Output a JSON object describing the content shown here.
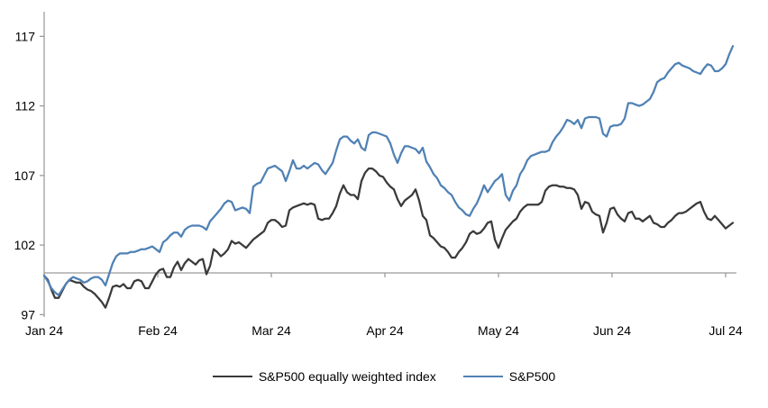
{
  "chart_data": {
    "type": "line",
    "title": "",
    "grid": "off",
    "legend_position": "bottom",
    "x_axis": {
      "tick_labels": [
        "Jan 24",
        "Feb 24",
        "Mar 24",
        "Apr 24",
        "May 24",
        "Jun 24",
        "Jul 24"
      ],
      "unit": "month"
    },
    "y_axis": {
      "ticks": [
        117,
        112,
        107,
        102,
        97
      ],
      "range": [
        97,
        117
      ],
      "baseline": 100
    },
    "axis_color": "#9a9a9a",
    "series": [
      {
        "name": "S&P500 equally weighted index",
        "color": "#3a3a3a",
        "values": [
          99.8,
          99.5,
          98.8,
          98.2,
          98.2,
          98.7,
          99.2,
          99.5,
          99.4,
          99.3,
          99.3,
          99.0,
          98.8,
          98.7,
          98.5,
          98.2,
          97.9,
          97.5,
          98.2,
          99.0,
          99.1,
          99.0,
          99.2,
          98.9,
          98.9,
          99.4,
          99.5,
          99.4,
          98.9,
          98.9,
          99.4,
          99.9,
          100.2,
          100.3,
          99.7,
          99.7,
          100.4,
          100.8,
          100.2,
          100.7,
          101.0,
          100.8,
          100.6,
          100.9,
          101.0,
          99.9,
          100.5,
          101.7,
          101.5,
          101.2,
          101.4,
          101.7,
          102.3,
          102.1,
          102.2,
          102.0,
          101.8,
          102.1,
          102.4,
          102.6,
          102.8,
          103.0,
          103.6,
          103.8,
          103.8,
          103.6,
          103.3,
          103.4,
          104.5,
          104.7,
          104.8,
          104.9,
          105.0,
          104.9,
          105.0,
          104.9,
          103.9,
          103.8,
          103.9,
          103.9,
          104.3,
          104.8,
          105.7,
          106.3,
          105.8,
          105.6,
          105.6,
          105.3,
          106.6,
          107.2,
          107.5,
          107.5,
          107.3,
          107.0,
          106.9,
          106.5,
          106.2,
          106.0,
          105.3,
          104.8,
          105.2,
          105.4,
          105.6,
          106.0,
          105.2,
          104.1,
          103.8,
          102.7,
          102.5,
          102.2,
          101.9,
          101.8,
          101.5,
          101.1,
          101.1,
          101.5,
          101.8,
          102.2,
          102.8,
          103.0,
          102.8,
          102.9,
          103.2,
          103.6,
          103.7,
          102.4,
          101.8,
          102.5,
          103.1,
          103.4,
          103.7,
          103.9,
          104.4,
          104.7,
          104.9,
          104.9,
          104.9,
          104.9,
          105.1,
          105.9,
          106.2,
          106.3,
          106.3,
          106.2,
          106.2,
          106.1,
          106.1,
          106.0,
          105.6,
          104.6,
          105.1,
          105.0,
          104.4,
          104.2,
          104.1,
          102.9,
          103.6,
          104.6,
          104.7,
          104.2,
          103.9,
          103.7,
          104.3,
          104.4,
          103.9,
          103.9,
          103.7,
          103.9,
          104.1,
          103.6,
          103.5,
          103.3,
          103.3,
          103.6,
          103.8,
          104.1,
          104.3,
          104.3,
          104.4,
          104.6,
          104.8,
          105.0,
          105.1,
          104.4,
          103.9,
          103.8,
          104.1,
          103.8,
          103.5,
          103.2,
          103.4,
          103.6
        ]
      },
      {
        "name": "S&P500",
        "color": "#4f81b5",
        "values": [
          99.8,
          99.4,
          98.9,
          98.6,
          98.4,
          98.8,
          99.2,
          99.5,
          99.7,
          99.6,
          99.5,
          99.3,
          99.4,
          99.6,
          99.7,
          99.7,
          99.5,
          99.1,
          99.9,
          100.7,
          101.2,
          101.4,
          101.4,
          101.4,
          101.5,
          101.5,
          101.6,
          101.7,
          101.7,
          101.8,
          101.9,
          101.7,
          101.5,
          102.2,
          102.4,
          102.7,
          102.9,
          102.9,
          102.6,
          103.1,
          103.3,
          103.4,
          103.4,
          103.4,
          103.3,
          103.1,
          103.7,
          104.0,
          104.3,
          104.6,
          105.0,
          105.2,
          105.1,
          104.5,
          104.6,
          104.7,
          104.6,
          104.3,
          106.2,
          106.4,
          106.5,
          107.0,
          107.5,
          107.6,
          107.7,
          107.5,
          107.3,
          106.6,
          107.3,
          108.1,
          107.5,
          107.5,
          107.7,
          107.5,
          107.7,
          107.9,
          107.8,
          107.4,
          107.1,
          107.5,
          107.9,
          108.8,
          109.6,
          109.8,
          109.8,
          109.5,
          109.3,
          109.6,
          109.0,
          108.8,
          109.9,
          110.1,
          110.1,
          110.0,
          109.9,
          109.8,
          109.3,
          108.5,
          107.9,
          108.6,
          109.1,
          109.1,
          109.0,
          108.9,
          108.6,
          109.0,
          108.0,
          107.6,
          107.1,
          106.8,
          106.3,
          106.1,
          105.8,
          105.6,
          105.1,
          104.7,
          104.5,
          104.2,
          104.1,
          104.6,
          105.0,
          105.6,
          106.3,
          105.8,
          106.2,
          106.6,
          106.8,
          107.1,
          105.6,
          105.2,
          105.9,
          106.3,
          107.1,
          107.5,
          108.1,
          108.4,
          108.5,
          108.6,
          108.7,
          108.7,
          108.8,
          109.4,
          109.8,
          110.1,
          110.5,
          111.0,
          110.9,
          110.7,
          111.0,
          110.4,
          111.1,
          111.2,
          111.2,
          111.2,
          111.1,
          110.0,
          109.8,
          110.5,
          110.6,
          110.6,
          110.7,
          111.1,
          112.2,
          112.2,
          112.1,
          112.0,
          112.1,
          112.3,
          112.5,
          113.0,
          113.7,
          113.9,
          114.0,
          114.4,
          114.7,
          115.0,
          115.1,
          114.9,
          114.8,
          114.7,
          114.5,
          114.4,
          114.3,
          114.7,
          115.0,
          114.9,
          114.5,
          114.5,
          114.7,
          115.0,
          115.7,
          116.3
        ]
      }
    ]
  }
}
